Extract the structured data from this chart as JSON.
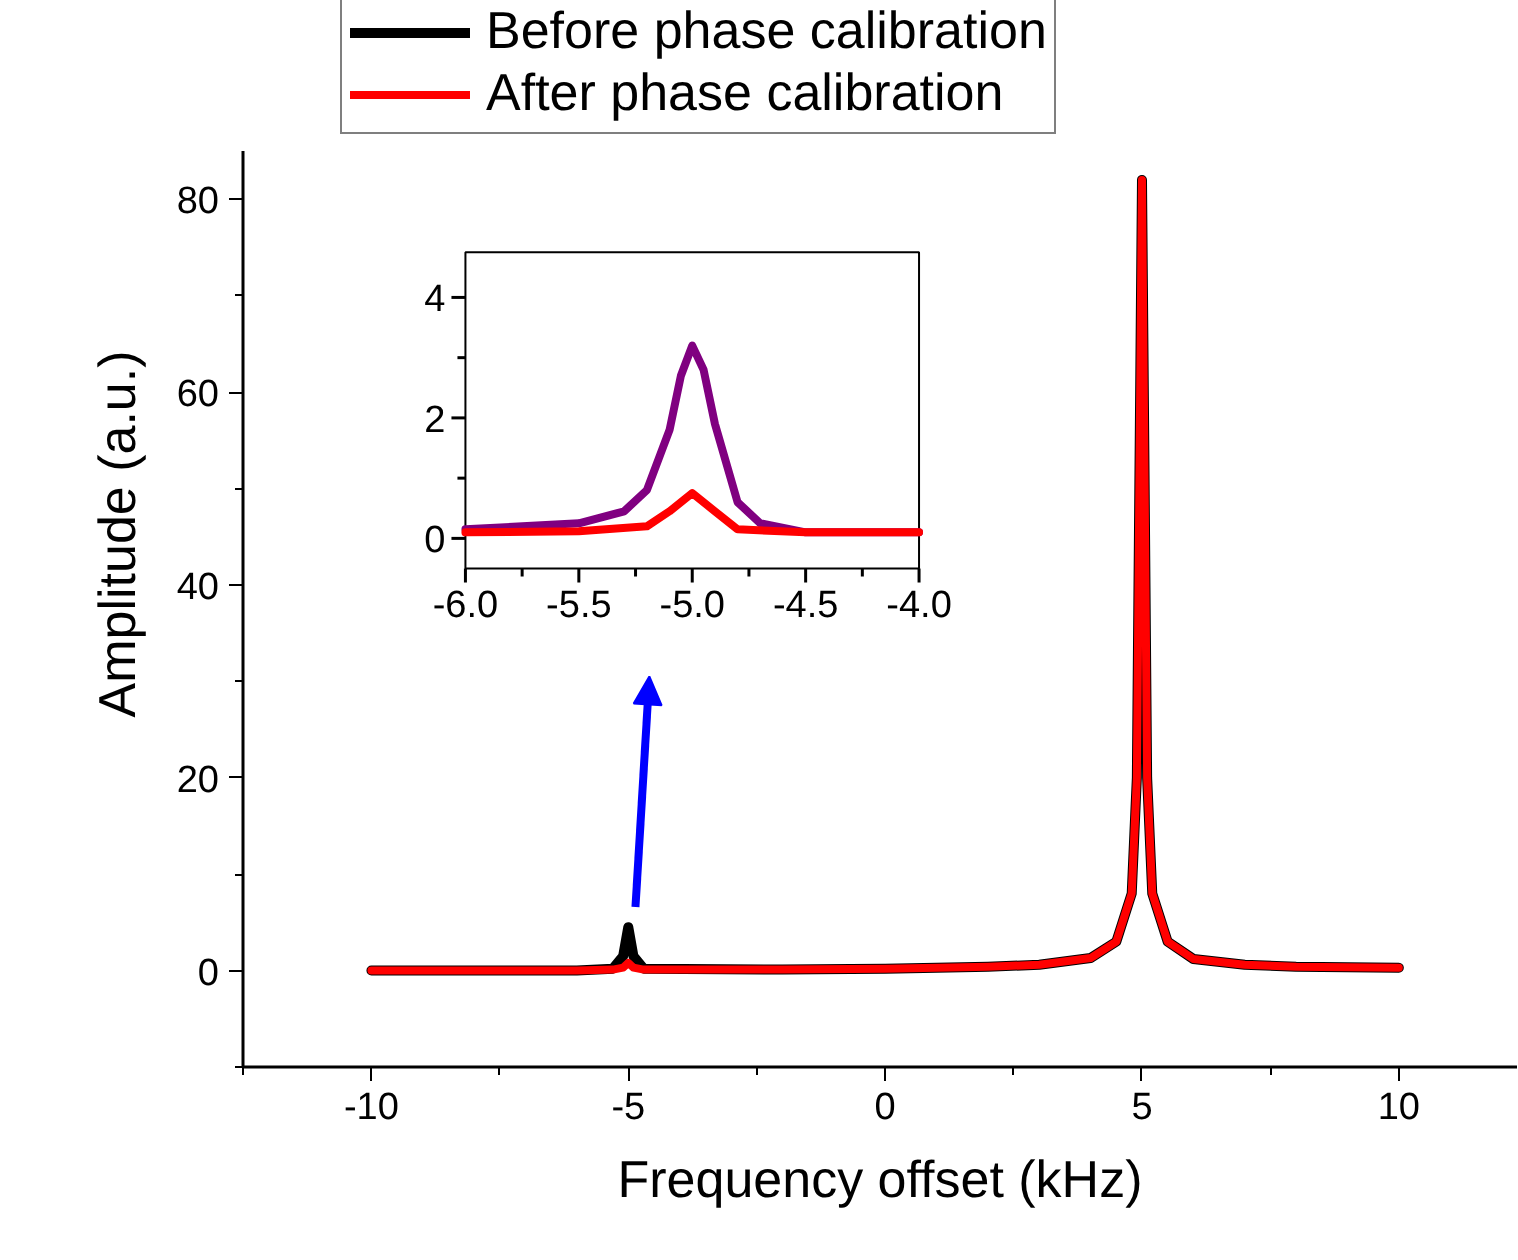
{
  "chart_data": [
    {
      "type": "line",
      "xlabel": "Frequency offset (kHz)",
      "ylabel": "Amplitude (a.u.)",
      "xlim": [
        -12.5,
        12.3
      ],
      "ylim": [
        -10,
        85
      ],
      "xticks": [
        -10,
        -5,
        0,
        5,
        10
      ],
      "yticks": [
        0,
        20,
        40,
        60,
        80
      ],
      "grid": false,
      "legend": "top",
      "line_style": "solid",
      "marker": "none",
      "series": [
        {
          "name": "Before phase calibration",
          "color": "#000000",
          "x": [
            -10,
            -6,
            -5.3,
            -5.1,
            -5,
            -4.9,
            -4.7,
            -2,
            0,
            2,
            3,
            4,
            4.5,
            4.8,
            4.9,
            5,
            5.1,
            5.2,
            5.5,
            6,
            7,
            8,
            10
          ],
          "values": [
            0,
            0,
            0.2,
            1.5,
            4.5,
            1.5,
            0.2,
            0.1,
            0.2,
            0.4,
            0.6,
            1.3,
            3,
            8,
            20,
            82,
            20,
            8,
            3,
            1.2,
            0.6,
            0.4,
            0.3
          ]
        },
        {
          "name": "After phase calibration",
          "color": "#ff0000",
          "x": [
            -10,
            -6,
            -5.3,
            -5.1,
            -5,
            -4.9,
            -4.7,
            -2,
            0,
            2,
            3,
            4,
            4.5,
            4.8,
            4.9,
            5,
            5.1,
            5.2,
            5.5,
            6,
            7,
            8,
            10
          ],
          "values": [
            0,
            0,
            0.1,
            0.3,
            0.8,
            0.3,
            0.1,
            0.1,
            0.2,
            0.4,
            0.6,
            1.3,
            3,
            8,
            20,
            82,
            20,
            8,
            3,
            1.2,
            0.6,
            0.4,
            0.3
          ]
        }
      ]
    },
    {
      "type": "line",
      "xlim": [
        -6,
        -4
      ],
      "ylim": [
        -0.5,
        4.75
      ],
      "xticks": [
        {
          "value": -6,
          "label": "-6.0"
        },
        {
          "value": -5.5,
          "label": "-5.5"
        },
        {
          "value": -5,
          "label": "-5.0"
        },
        {
          "value": -4.5,
          "label": "-4.5"
        },
        {
          "value": -4,
          "label": "-4.0"
        }
      ],
      "yticks": [
        0,
        2,
        4
      ],
      "grid": false,
      "line_style": "solid",
      "series": [
        {
          "color": "#800080",
          "x": [
            -6,
            -5.5,
            -5.3,
            -5.2,
            -5.1,
            -5.05,
            -5,
            -4.95,
            -4.9,
            -4.8,
            -4.7,
            -4.5,
            -4
          ],
          "values": [
            0.15,
            0.25,
            0.45,
            0.8,
            1.8,
            2.7,
            3.2,
            2.8,
            1.9,
            0.6,
            0.25,
            0.1,
            0.1
          ]
        },
        {
          "color": "#ff0000",
          "x": [
            -6,
            -5.5,
            -5.2,
            -5.1,
            -5,
            -4.9,
            -4.8,
            -4.5,
            -4
          ],
          "values": [
            0.1,
            0.12,
            0.2,
            0.45,
            0.75,
            0.45,
            0.15,
            0.1,
            0.1
          ]
        }
      ]
    }
  ]
}
